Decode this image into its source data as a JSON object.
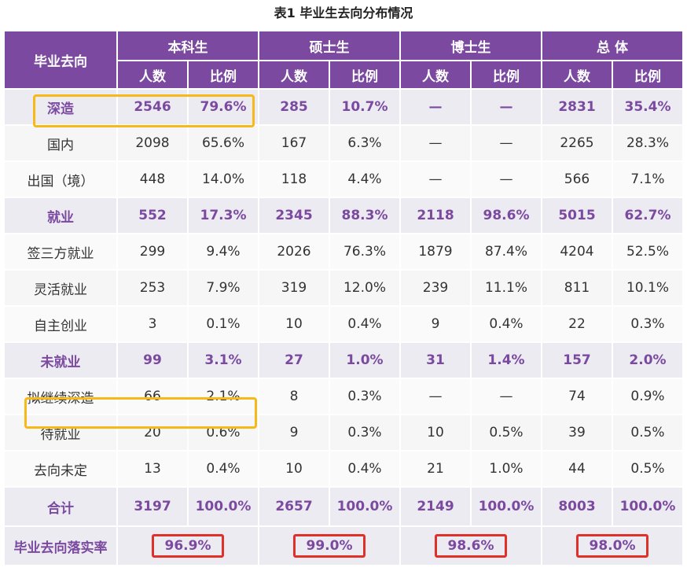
{
  "caption": "表1  毕业生去向分布情况",
  "header": {
    "first_col": "毕业去向",
    "groups": [
      "本科生",
      "硕士生",
      "博士生",
      "总  体"
    ],
    "sub": [
      "人数",
      "比例"
    ]
  },
  "rows": [
    {
      "kind": "main",
      "label": "深造",
      "cells": [
        "2546",
        "79.6%",
        "285",
        "10.7%",
        "—",
        "—",
        "2831",
        "35.4%"
      ]
    },
    {
      "kind": "sub",
      "label": "国内",
      "cells": [
        "2098",
        "65.6%",
        "167",
        "6.3%",
        "—",
        "—",
        "2265",
        "28.3%"
      ]
    },
    {
      "kind": "sub",
      "label": "出国（境）",
      "cells": [
        "448",
        "14.0%",
        "118",
        "4.4%",
        "—",
        "—",
        "566",
        "7.1%"
      ]
    },
    {
      "kind": "main",
      "label": "就业",
      "cells": [
        "552",
        "17.3%",
        "2345",
        "88.3%",
        "2118",
        "98.6%",
        "5015",
        "62.7%"
      ]
    },
    {
      "kind": "sub",
      "label": "签三方就业",
      "cells": [
        "299",
        "9.4%",
        "2026",
        "76.3%",
        "1879",
        "87.4%",
        "4204",
        "52.5%"
      ]
    },
    {
      "kind": "sub",
      "label": "灵活就业",
      "cells": [
        "253",
        "7.9%",
        "319",
        "12.0%",
        "239",
        "11.1%",
        "811",
        "10.1%"
      ]
    },
    {
      "kind": "sub",
      "label": "自主创业",
      "cells": [
        "3",
        "0.1%",
        "10",
        "0.4%",
        "9",
        "0.4%",
        "22",
        "0.3%"
      ]
    },
    {
      "kind": "main",
      "label": "未就业",
      "cells": [
        "99",
        "3.1%",
        "27",
        "1.0%",
        "31",
        "1.4%",
        "157",
        "2.0%"
      ]
    },
    {
      "kind": "sub",
      "label": "拟继续深造",
      "cells": [
        "66",
        "2.1%",
        "8",
        "0.3%",
        "—",
        "—",
        "74",
        "0.9%"
      ]
    },
    {
      "kind": "sub",
      "label": "待就业",
      "cells": [
        "20",
        "0.6%",
        "9",
        "0.3%",
        "10",
        "0.5%",
        "39",
        "0.5%"
      ]
    },
    {
      "kind": "sub",
      "label": "去向未定",
      "cells": [
        "13",
        "0.4%",
        "10",
        "0.4%",
        "21",
        "1.0%",
        "44",
        "0.5%"
      ]
    },
    {
      "kind": "total",
      "label": "合计",
      "cells": [
        "3197",
        "100.0%",
        "2657",
        "100.0%",
        "2149",
        "100.0%",
        "8003",
        "100.0%"
      ]
    }
  ],
  "rate_row": {
    "label": "毕业去向落实率",
    "values": [
      "96.9%",
      "99.0%",
      "98.6%",
      "98.0%"
    ]
  },
  "colors": {
    "header_bg": "#7b4aa0",
    "row_highlight_bg": "#ecebf2",
    "highlight_box": "#f6b919",
    "rate_box": "#e0302a"
  }
}
